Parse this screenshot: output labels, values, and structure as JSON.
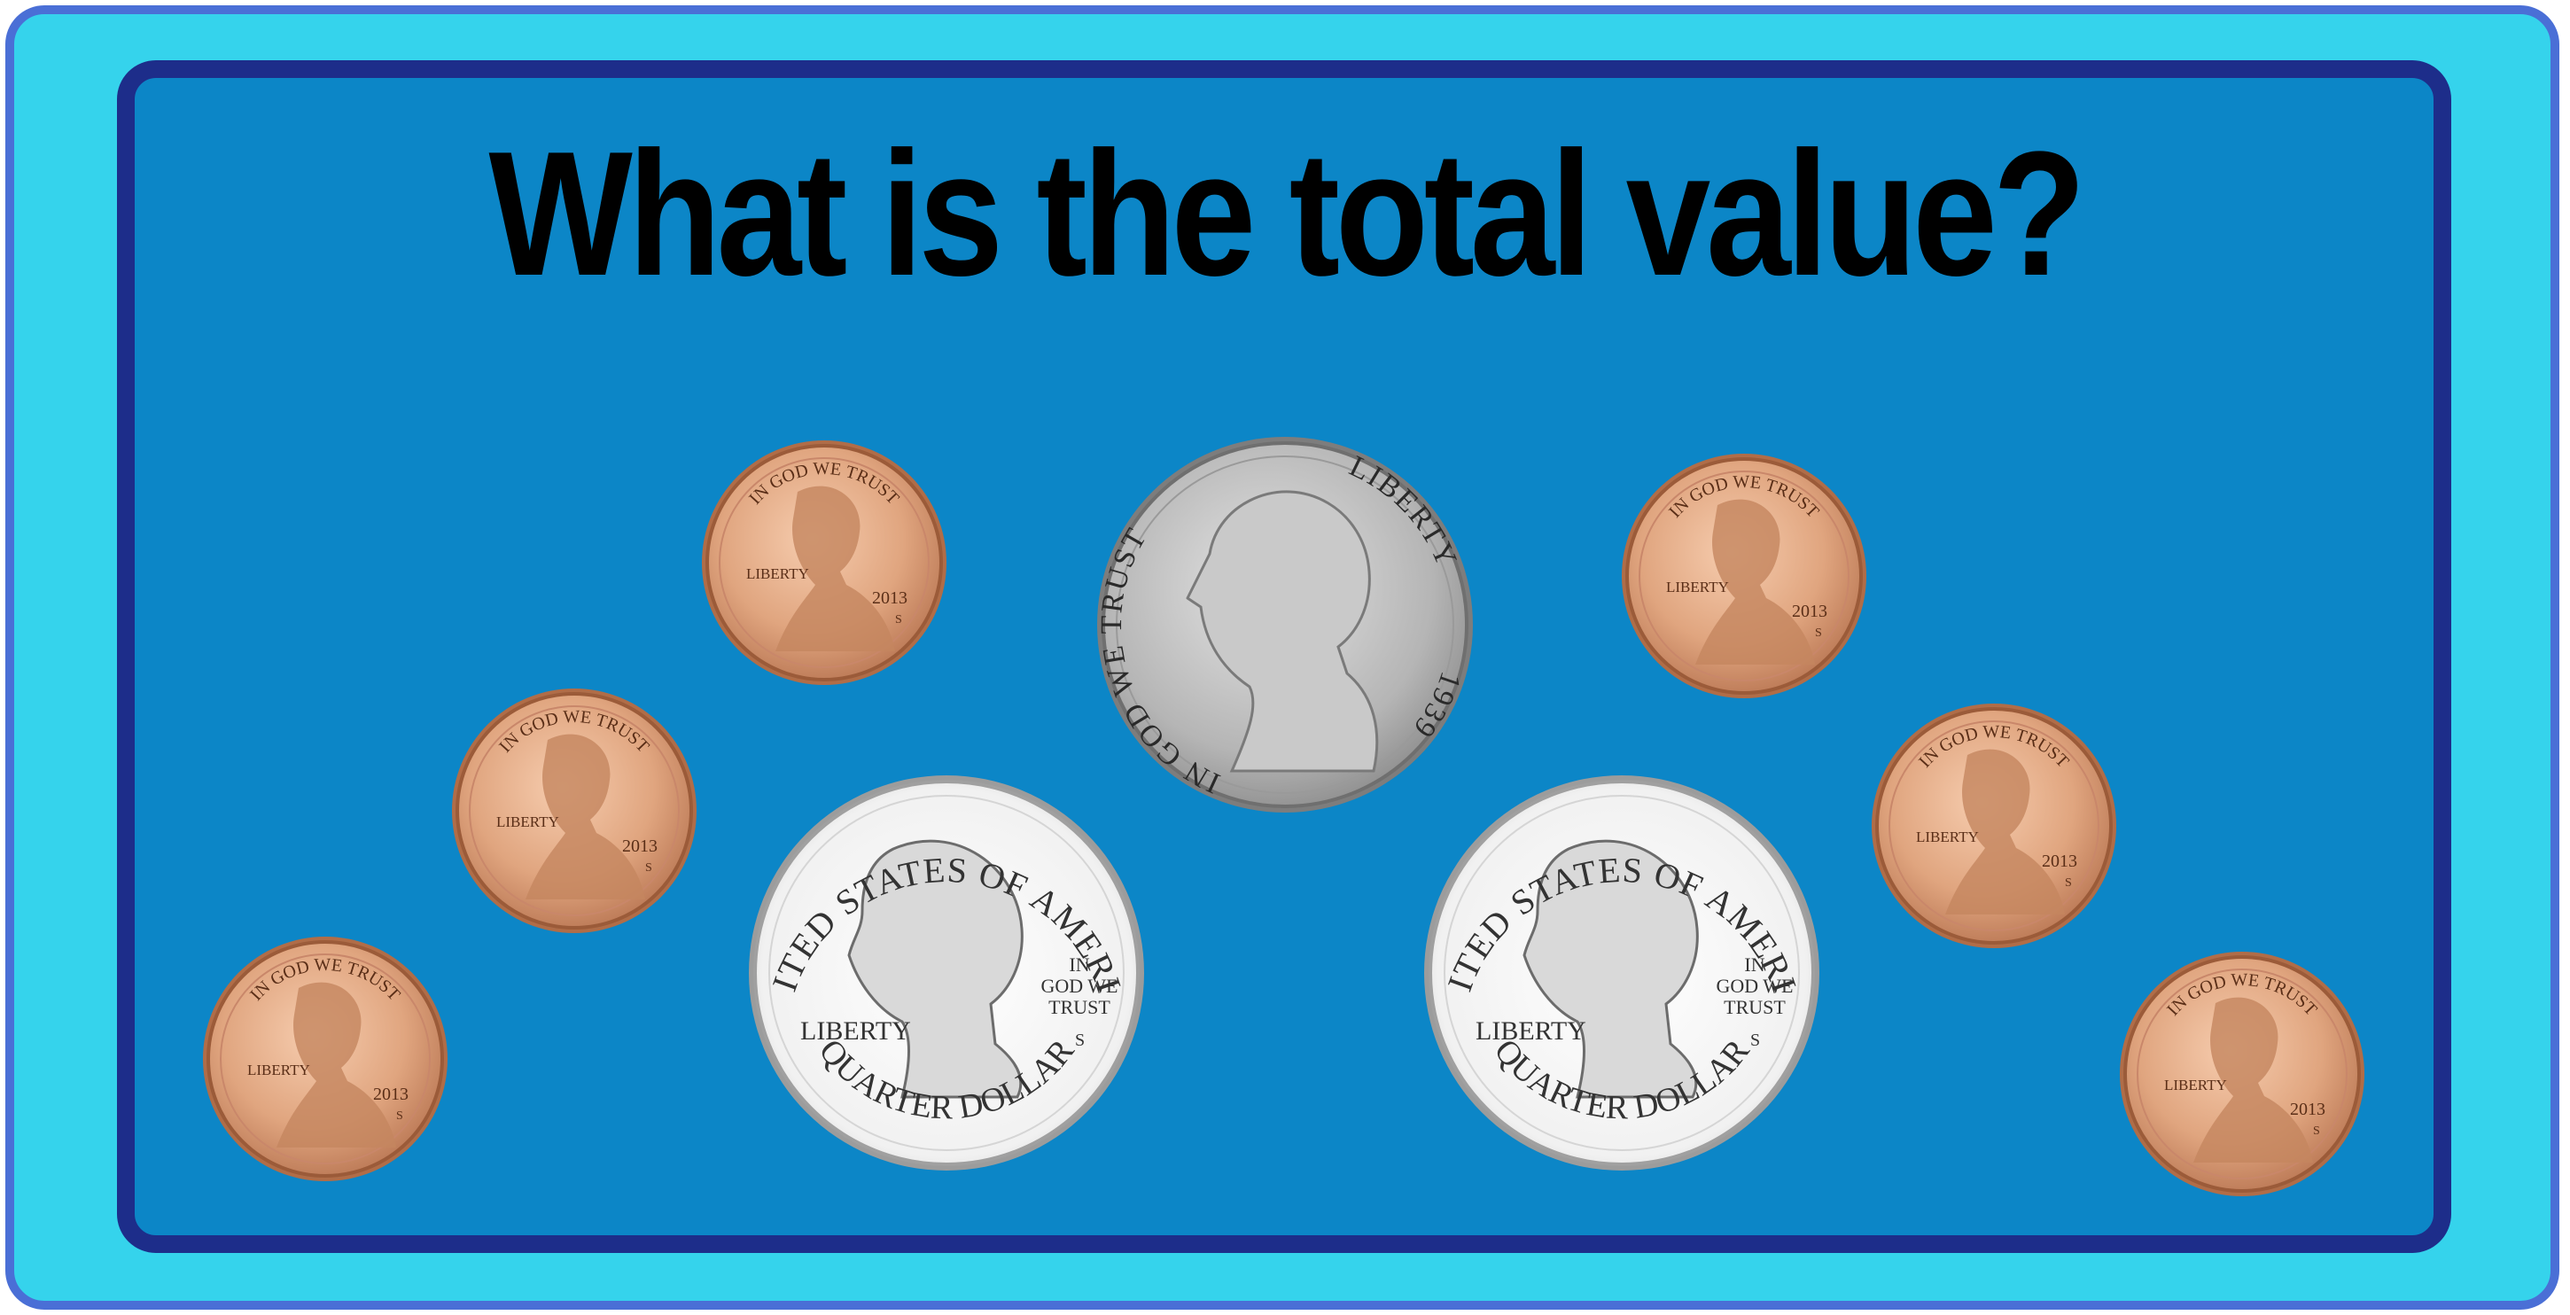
{
  "question": "What is the total value?",
  "colors": {
    "outer_border": "#4a6fd6",
    "outer_fill": "#35d3ec",
    "panel_border": "#1d2d8a",
    "panel_fill": "#0c86c7",
    "penny": "#d49a73",
    "nickel": "#b8b8b8",
    "quarter": "#f2f2f2"
  },
  "penny": {
    "motto": "IN GOD WE TRUST",
    "liberty": "LIBERTY",
    "year": "2013",
    "mint": "S"
  },
  "nickel": {
    "motto": "IN GOD WE TRUST",
    "liberty": "LIBERTY",
    "year": "1939"
  },
  "quarter": {
    "country": "UNITED STATES OF AMERICA",
    "denomination": "QUARTER DOLLAR",
    "liberty": "LIBERTY",
    "motto_line1": "IN",
    "motto_line2": "GOD WE",
    "motto_line3": "TRUST",
    "mint": "S"
  },
  "coins": [
    {
      "type": "penny"
    },
    {
      "type": "penny"
    },
    {
      "type": "penny"
    },
    {
      "type": "nickel"
    },
    {
      "type": "quarter"
    },
    {
      "type": "quarter"
    },
    {
      "type": "penny"
    },
    {
      "type": "penny"
    },
    {
      "type": "penny"
    }
  ]
}
